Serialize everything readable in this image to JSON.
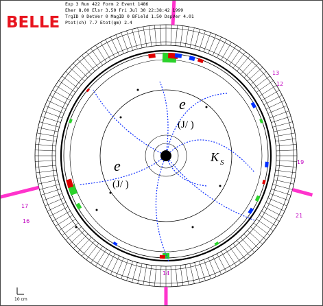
{
  "header": {
    "title": "BELLE",
    "info_lines": [
      "Exp    3  Run     422  Form    2  Event   1486",
      "Eher  8.00  Elsr  3.50   Fri Jul 30 22:38:42 1999",
      "TrgID   0 DetVer    0  MagID   0  BField  1.50  DspVer  4.01",
      "Ptot(ch)   7.7  Etot(gm)   2.4"
    ]
  },
  "annotations": {
    "electron_upper": "e",
    "jpsi_upper": "(J/ )",
    "electron_lower": "e",
    "jpsi_lower": "(J/ )",
    "kshort_main": "K",
    "kshort_sub": "S"
  },
  "cluster_labels": [
    "13",
    "12",
    "19",
    "21",
    "17",
    "16",
    "14"
  ],
  "scale_label": "10 cm"
}
